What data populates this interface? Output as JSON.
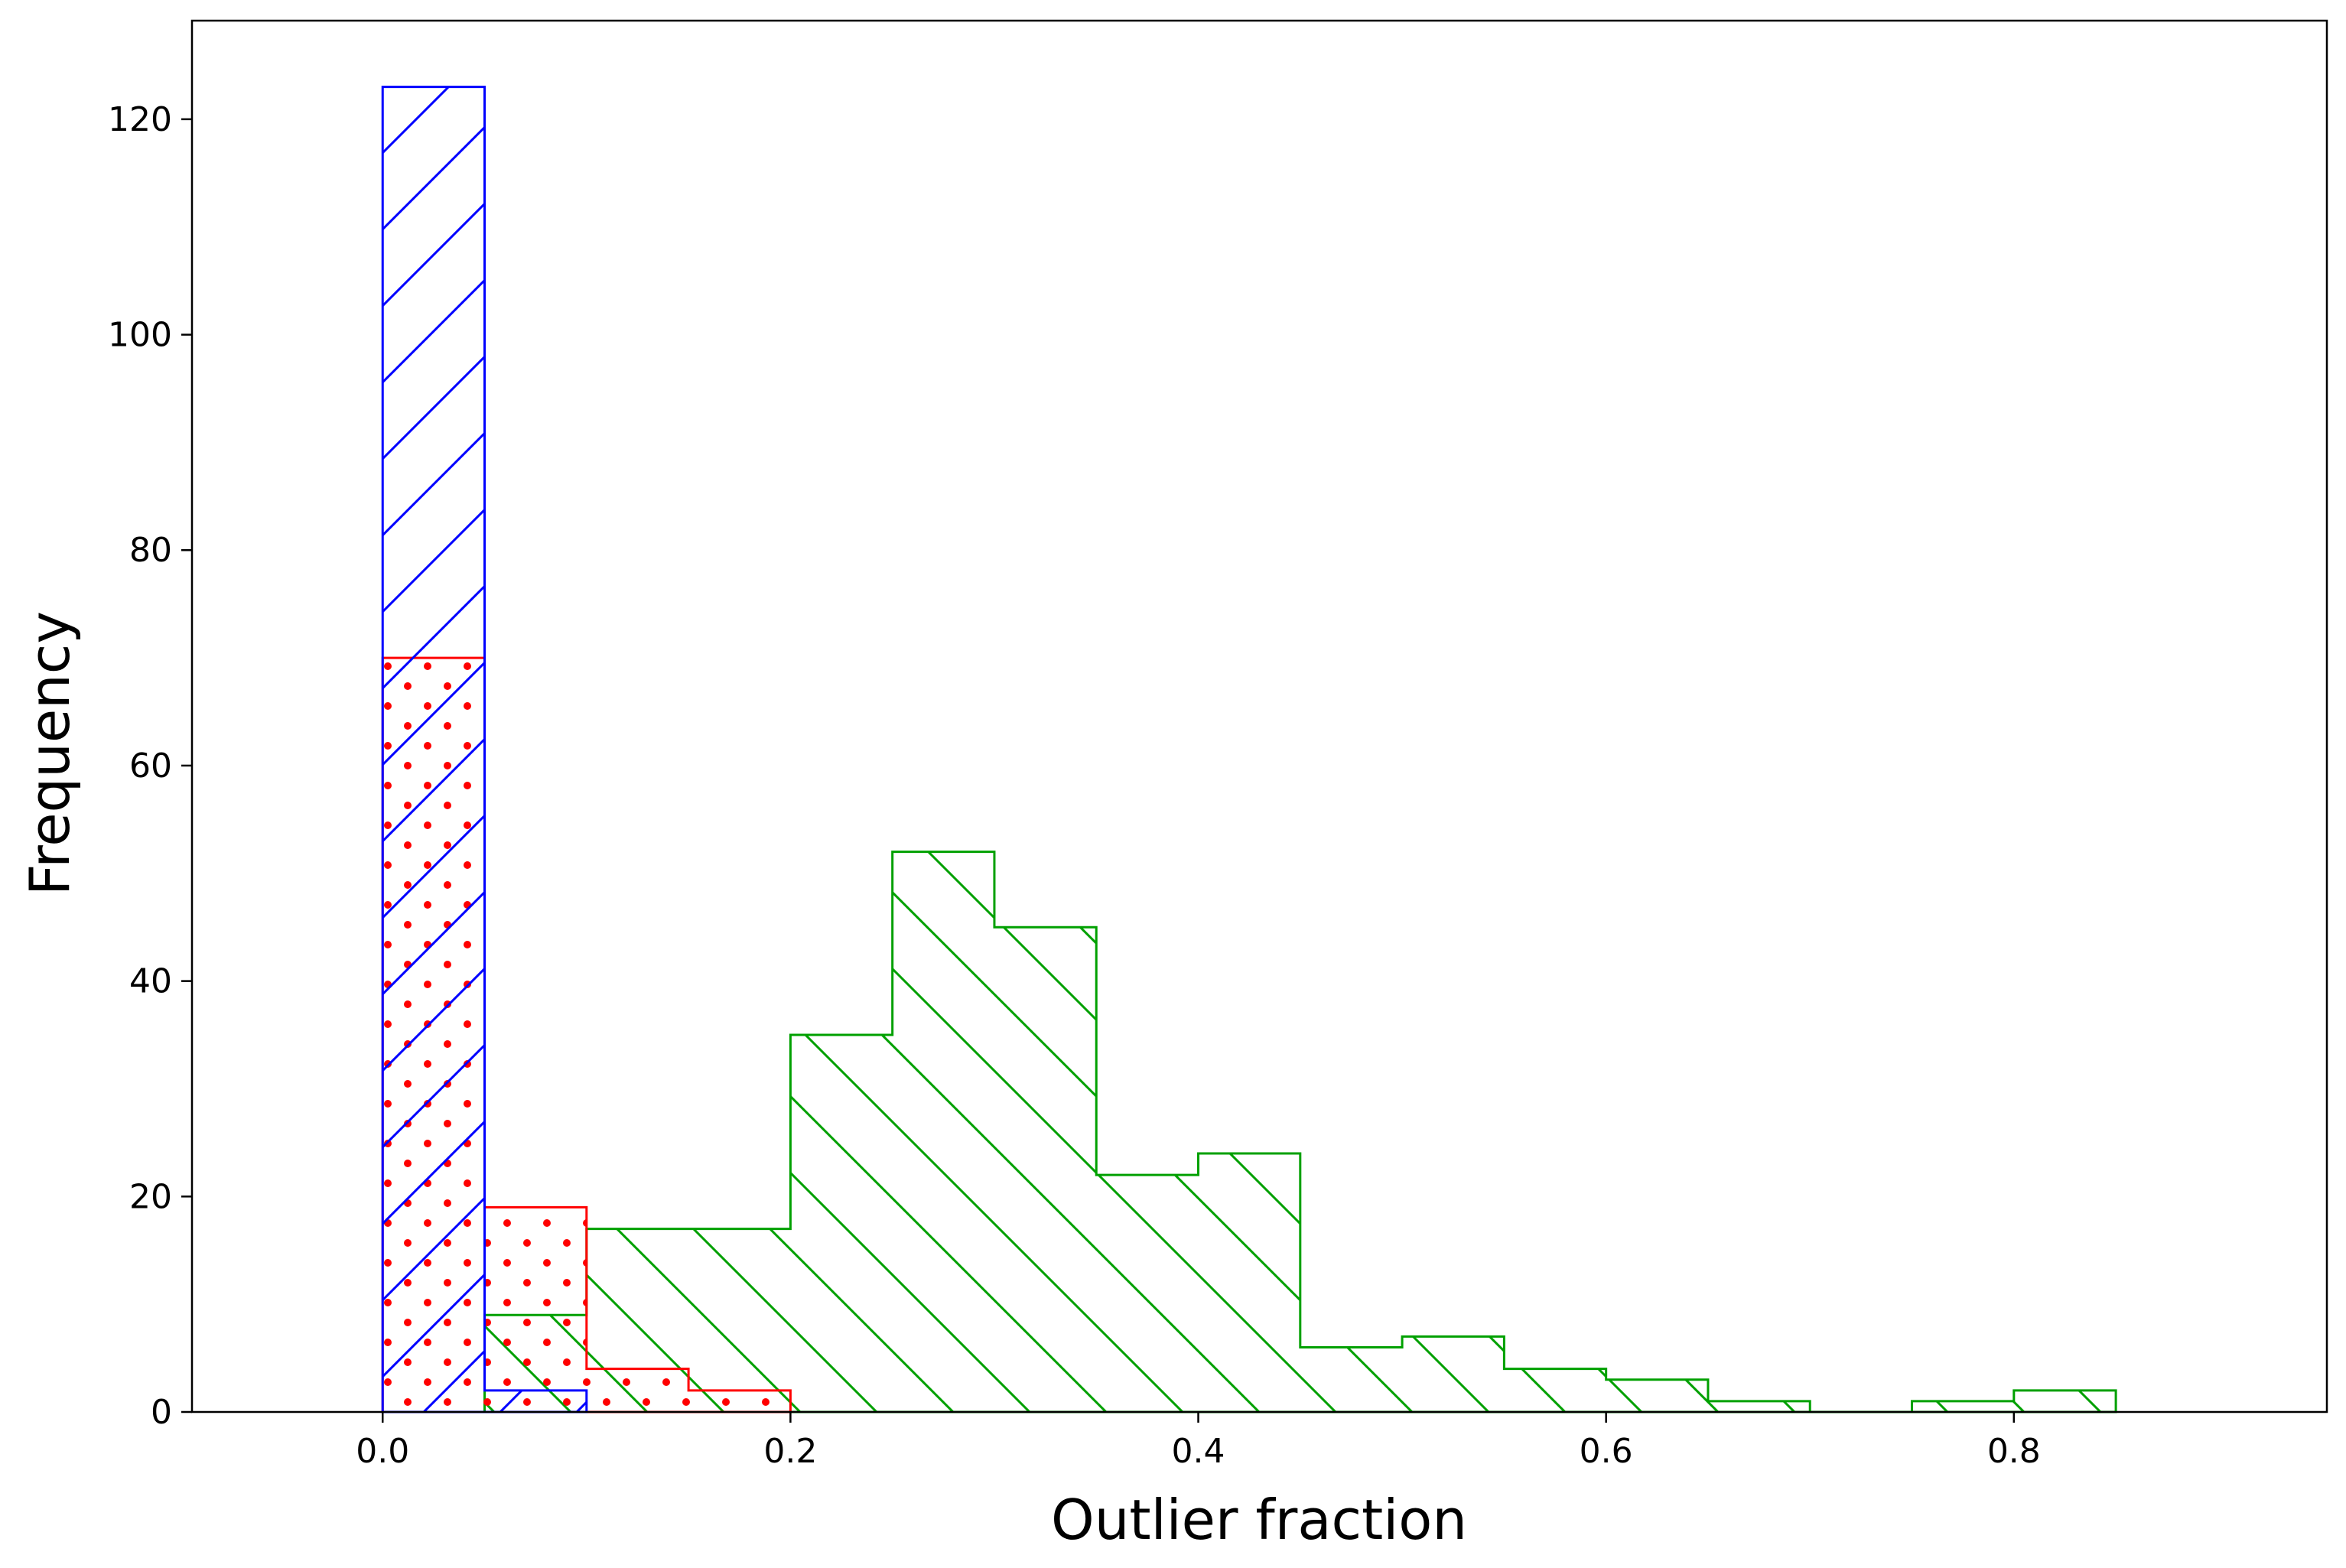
{
  "chart_data": {
    "type": "histogram",
    "title": "",
    "xlabel": "Outlier fraction",
    "ylabel": "Frequency",
    "xlim": [
      -0.0935,
      0.9535
    ],
    "ylim": [
      0,
      129.15
    ],
    "xticks": [
      0.0,
      0.2,
      0.4,
      0.6,
      0.8
    ],
    "xtick_labels": [
      "0.0",
      "0.2",
      "0.4",
      "0.6",
      "0.8"
    ],
    "yticks": [
      0,
      20,
      40,
      60,
      80,
      100,
      120
    ],
    "ytick_labels": [
      "0",
      "20",
      "40",
      "60",
      "80",
      "100",
      "120"
    ],
    "grid": false,
    "legend": null,
    "bin_edges": [
      0.0,
      0.05,
      0.1,
      0.15,
      0.2,
      0.25,
      0.3,
      0.35,
      0.4,
      0.45,
      0.5,
      0.55,
      0.6,
      0.65,
      0.7,
      0.75,
      0.8,
      0.85
    ],
    "series": [
      {
        "color": "#00a000",
        "hatch": "diagonal-backslash",
        "counts": [
          0,
          9,
          17,
          17,
          35,
          52,
          45,
          22,
          24,
          6,
          7,
          4,
          3,
          1,
          0,
          1,
          2
        ]
      },
      {
        "color": "#ff0000",
        "hatch": "dots",
        "counts": [
          70,
          19,
          4,
          2,
          0,
          0,
          0,
          0,
          0,
          0,
          0,
          0,
          0,
          0,
          0,
          0,
          0
        ]
      },
      {
        "color": "#0000ff",
        "hatch": "diagonal-slash",
        "counts": [
          123,
          2,
          0,
          0,
          0,
          0,
          0,
          0,
          0,
          0,
          0,
          0,
          0,
          0,
          0,
          0,
          0
        ]
      }
    ]
  }
}
